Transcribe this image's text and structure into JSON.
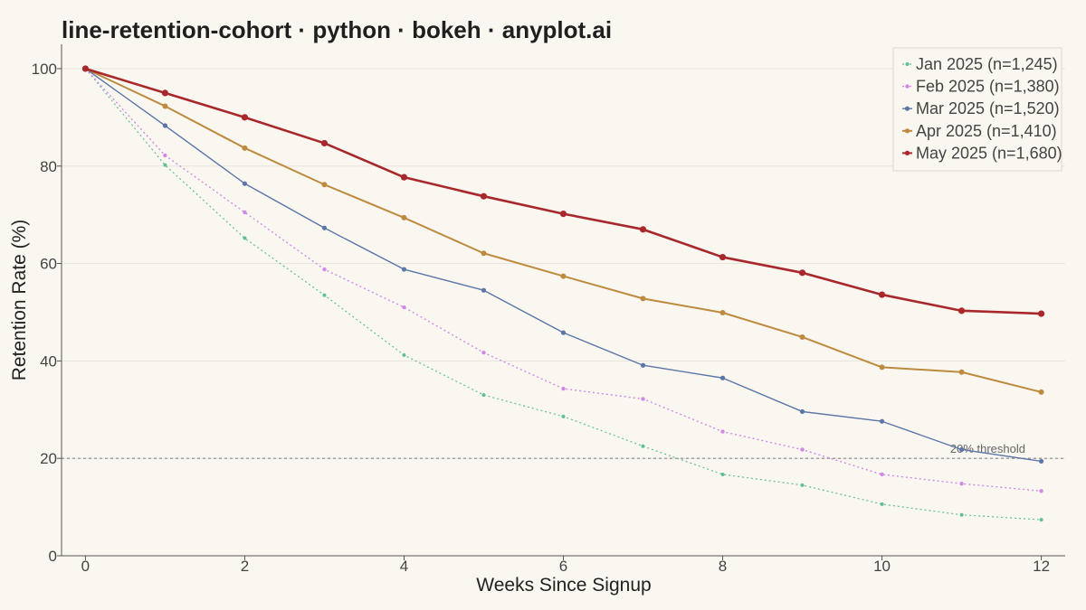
{
  "chart_data": {
    "type": "line",
    "title": "line-retention-cohort · python · bokeh · anyplot.ai",
    "xlabel": "Weeks Since Signup",
    "ylabel": "Retention Rate (%)",
    "xlim": [
      -0.3,
      12.3
    ],
    "ylim": [
      0,
      105
    ],
    "x_ticks": [
      0,
      2,
      4,
      6,
      8,
      10,
      12
    ],
    "y_ticks": [
      0,
      20,
      40,
      60,
      80,
      100
    ],
    "grid": "horizontal",
    "legend_position": "top-right",
    "x": [
      0,
      1,
      2,
      3,
      4,
      5,
      6,
      7,
      8,
      9,
      10,
      11,
      12
    ],
    "series": [
      {
        "name": "Jan 2025 (n=1,245)",
        "color": "#5fbf95",
        "dash": "dotted",
        "values": [
          100,
          80.2,
          65.2,
          53.5,
          41.2,
          33.0,
          28.6,
          22.5,
          16.7,
          14.5,
          10.6,
          8.4,
          7.4
        ]
      },
      {
        "name": "Feb 2025 (n=1,380)",
        "color": "#d08ae6",
        "dash": "dotted",
        "values": [
          100,
          82.2,
          70.5,
          58.8,
          51.0,
          41.7,
          34.3,
          32.2,
          25.5,
          21.8,
          16.7,
          14.8,
          13.3
        ]
      },
      {
        "name": "Mar 2025 (n=1,520)",
        "color": "#5b76a8",
        "dash": "solid",
        "values": [
          100,
          88.3,
          76.4,
          67.3,
          58.8,
          54.5,
          45.8,
          39.1,
          36.5,
          29.6,
          27.6,
          21.8,
          19.4
        ]
      },
      {
        "name": "Apr 2025 (n=1,410)",
        "color": "#bd8a3e",
        "dash": "solid",
        "values": [
          100,
          92.3,
          83.7,
          76.2,
          69.4,
          62.1,
          57.4,
          52.8,
          49.9,
          44.9,
          38.7,
          37.7,
          33.6
        ]
      },
      {
        "name": "May 2025 (n=1,680)",
        "color": "#a8282b",
        "dash": "solid",
        "values": [
          100,
          95.0,
          90.0,
          84.7,
          77.7,
          73.8,
          70.2,
          67.0,
          61.3,
          58.1,
          53.6,
          50.3,
          49.7
        ]
      }
    ],
    "reference_line": {
      "y": 20,
      "label": "20% threshold"
    }
  }
}
